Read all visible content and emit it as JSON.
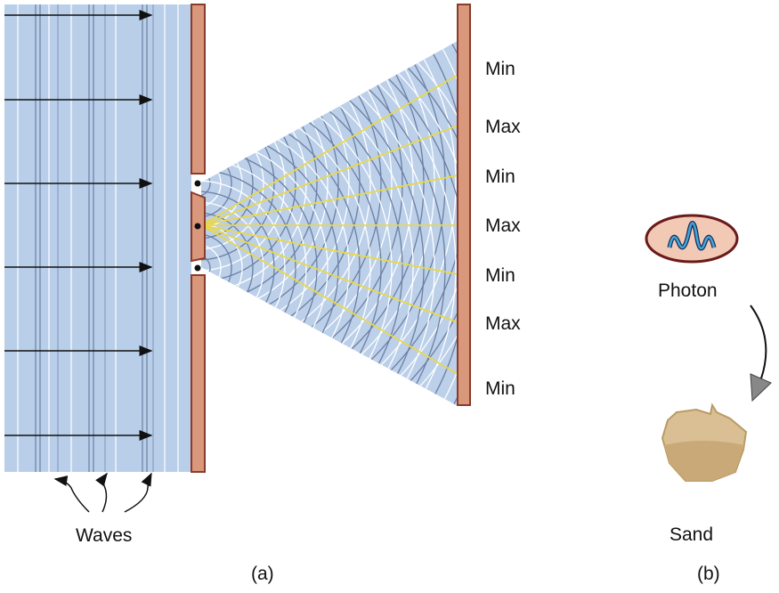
{
  "panel_a": {
    "caption": "(a)",
    "waves_label": "Waves",
    "screen_labels": [
      "Min",
      "Max",
      "Min",
      "Max",
      "Min",
      "Max",
      "Min"
    ]
  },
  "panel_b": {
    "caption": "(b)",
    "photon_label": "Photon",
    "sand_label": "Sand"
  },
  "colors": {
    "wave_region": "#b9cfe9",
    "barrier": "#d9977b",
    "barrier_border": "#8a3b2b",
    "max_lines": "#e8d84a",
    "wavefront_dark": "#6c7fa3"
  }
}
